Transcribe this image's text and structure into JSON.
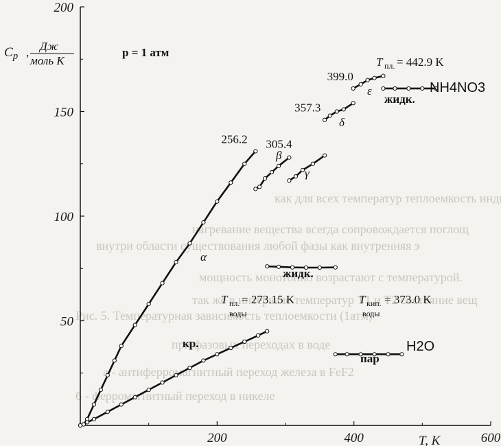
{
  "chart_data": {
    "type": "line",
    "xlim": [
      0,
      600
    ],
    "ylim": [
      0,
      200
    ],
    "xlabel": "T, K",
    "ylabel": "Cp, Дж/(моль K)",
    "x_ticks": [
      200,
      400,
      600
    ],
    "y_ticks": [
      50,
      100,
      150,
      200
    ],
    "y_tick_labels": [
      "50",
      "100",
      "150",
      "200"
    ],
    "x_tick_labels": [
      "200",
      "400",
      "600"
    ],
    "grid": false,
    "pressure_label": "p = 1 атм",
    "series": [
      {
        "name": "NH4NO3",
        "segment": "α",
        "x": [
          0,
          5,
          10,
          20,
          30,
          40,
          50,
          60,
          80,
          100,
          120,
          140,
          160,
          180,
          200,
          220,
          240,
          256.2
        ],
        "y": [
          0,
          0.5,
          3,
          10,
          17,
          24,
          31,
          38,
          48,
          58,
          68,
          78,
          87,
          97,
          107,
          116,
          125,
          131
        ]
      },
      {
        "name": "NH4NO3",
        "segment": "β",
        "x": [
          256.2,
          262,
          270,
          280,
          290,
          305.4
        ],
        "y": [
          113,
          114,
          118,
          121,
          124,
          128
        ]
      },
      {
        "name": "NH4NO3",
        "segment": "γ",
        "x": [
          305.4,
          315,
          325,
          340,
          357.3
        ],
        "y": [
          117,
          119,
          122,
          125,
          129
        ]
      },
      {
        "name": "NH4NO3",
        "segment": "δ",
        "x": [
          357.3,
          365,
          375,
          385,
          399.0
        ],
        "y": [
          146,
          148,
          150,
          151,
          154
        ]
      },
      {
        "name": "NH4NO3",
        "segment": "ε",
        "x": [
          399.0,
          410,
          420,
          430,
          442.9
        ],
        "y": [
          161,
          163,
          165,
          166,
          167
        ]
      },
      {
        "name": "NH4NO3",
        "segment": "жидк.",
        "x": [
          442.9,
          460,
          480,
          500,
          520
        ],
        "y": [
          161,
          161,
          161,
          161,
          161
        ]
      },
      {
        "name": "H2O",
        "segment": "кр.",
        "x": [
          0,
          5,
          10,
          20,
          40,
          60,
          80,
          100,
          120,
          140,
          160,
          180,
          200,
          220,
          240,
          260,
          273.15
        ],
        "y": [
          0,
          0.5,
          1.5,
          3,
          6.5,
          10,
          13.5,
          17,
          20.5,
          24,
          27.5,
          31,
          34,
          37,
          40,
          43,
          45
        ]
      },
      {
        "name": "H2O",
        "segment": "жидк.",
        "x": [
          273.15,
          290,
          310,
          330,
          350,
          373.0
        ],
        "y": [
          76,
          75.8,
          75.5,
          75.4,
          75.4,
          75.5
        ]
      },
      {
        "name": "H2O",
        "segment": "пар",
        "x": [
          373.0,
          390,
          410,
          430,
          450,
          470
        ],
        "y": [
          34,
          34,
          34,
          34,
          34,
          34
        ]
      }
    ],
    "point_labels": [
      {
        "text": "256.2",
        "x": 256.2,
        "y": 131
      },
      {
        "text": "305.4",
        "x": 305.4,
        "y": 128
      },
      {
        "text": "357.3",
        "x": 357.3,
        "y": 146
      },
      {
        "text": "399.0",
        "x": 399.0,
        "y": 161
      }
    ],
    "phase_labels": {
      "alpha": "α",
      "beta": "β",
      "gamma": "γ",
      "delta": "δ",
      "epsilon": "ε",
      "nh4no3_liquid": "жидк.",
      "h2o_liquid": "жидк.",
      "h2o_solid": "кр.",
      "h2o_vapor": "пар"
    },
    "annotations": {
      "t_melt_nh4no3_prefix": "T",
      "t_melt_nh4no3_sub": "пл.",
      "t_melt_nh4no3_value": "= 442.9 K",
      "t_melt_h2o_prefix": "T",
      "t_melt_h2o_sub": "пл.",
      "t_melt_h2o_value": "= 273.15 K",
      "t_melt_h2o_note": "воды",
      "t_boil_h2o_prefix": "T",
      "t_boil_h2o_sub": "кип.",
      "t_boil_h2o_value": "= 373.0 K",
      "t_boil_h2o_note": "воды",
      "nh4no3_formula": "NH4NO3",
      "h2o_formula": "H2O"
    }
  },
  "background_text": [
    "как для всех температур теплоемкость индивидуальных в",
    "нагревание вещества всегда сопровождается поглощ",
    "внутри области существования любой фазы как внутренняя э",
    "мощность монотонно возрастают с температурой.",
    "так же в интервале температур T1 и T2 состояние вещ",
    "Рис. 5. Температурная зависимость теплоемкости (1атм)",
    "а - антиферромагнитный переход железа в FeF2",
    "б - ферромагнитный переход в никеле",
    "при фазовых переходах в воде"
  ]
}
